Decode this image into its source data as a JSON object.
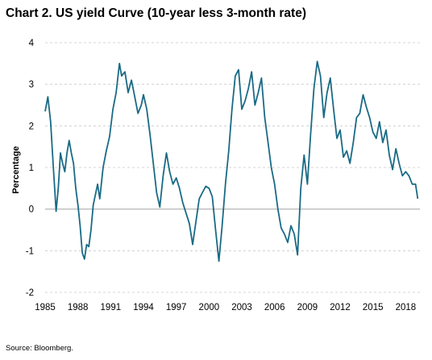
{
  "chart_data": {
    "type": "line",
    "title": "Chart 2. US yield Curve (10-year less 3-month rate)",
    "ylabel": "Percentage",
    "xlabel": "",
    "source": "Source: Bloomberg.",
    "ylim": [
      -2,
      4
    ],
    "xlim": [
      1985,
      2019.3
    ],
    "yticks": [
      "4",
      "3",
      "2",
      "1",
      "0",
      "-1",
      "-2"
    ],
    "xticks": [
      "1985",
      "1988",
      "1991",
      "1994",
      "1997",
      "2000",
      "2003",
      "2006",
      "2009",
      "2012",
      "2015",
      "2018"
    ],
    "grid": "horizontal dashed",
    "line_color": "#1a6a85",
    "series": [
      {
        "x": [
          1985.0,
          1985.25,
          1985.5,
          1985.75,
          1986.0,
          1986.2,
          1986.4,
          1986.6,
          1986.8,
          1987.0,
          1987.2,
          1987.4,
          1987.6,
          1987.8,
          1988.0,
          1988.2,
          1988.4,
          1988.6,
          1988.8,
          1989.0,
          1989.2,
          1989.4,
          1989.6,
          1989.8,
          1990.0,
          1990.3,
          1990.6,
          1990.9,
          1991.2,
          1991.5,
          1991.8,
          1992.0,
          1992.3,
          1992.6,
          1992.9,
          1993.2,
          1993.5,
          1993.8,
          1994.0,
          1994.3,
          1994.6,
          1994.9,
          1995.2,
          1995.5,
          1995.8,
          1996.1,
          1996.4,
          1996.7,
          1997.0,
          1997.3,
          1997.6,
          1997.9,
          1998.2,
          1998.5,
          1998.8,
          1999.1,
          1999.4,
          1999.7,
          2000.0,
          2000.3,
          2000.6,
          2000.9,
          2001.2,
          2001.5,
          2001.8,
          2002.1,
          2002.4,
          2002.7,
          2003.0,
          2003.3,
          2003.6,
          2003.9,
          2004.2,
          2004.5,
          2004.8,
          2005.1,
          2005.4,
          2005.7,
          2006.0,
          2006.3,
          2006.6,
          2006.9,
          2007.2,
          2007.5,
          2007.8,
          2008.1,
          2008.4,
          2008.7,
          2009.0,
          2009.3,
          2009.6,
          2009.9,
          2010.2,
          2010.5,
          2010.8,
          2011.1,
          2011.4,
          2011.7,
          2012.0,
          2012.3,
          2012.6,
          2012.9,
          2013.2,
          2013.5,
          2013.8,
          2014.1,
          2014.4,
          2014.7,
          2015.0,
          2015.3,
          2015.6,
          2015.9,
          2016.2,
          2016.5,
          2016.8,
          2017.1,
          2017.4,
          2017.7,
          2018.0,
          2018.3,
          2018.6,
          2018.9,
          2019.1
        ],
        "y": [
          2.35,
          2.7,
          2.1,
          1.0,
          -0.05,
          0.5,
          1.35,
          1.1,
          0.9,
          1.35,
          1.65,
          1.35,
          1.1,
          0.5,
          0.1,
          -0.4,
          -1.05,
          -1.2,
          -0.85,
          -0.9,
          -0.5,
          0.1,
          0.35,
          0.6,
          0.25,
          1.0,
          1.4,
          1.75,
          2.4,
          2.8,
          3.5,
          3.2,
          3.3,
          2.8,
          3.1,
          2.7,
          2.3,
          2.5,
          2.75,
          2.4,
          1.8,
          1.1,
          0.4,
          0.05,
          0.8,
          1.35,
          0.9,
          0.6,
          0.75,
          0.5,
          0.15,
          -0.1,
          -0.35,
          -0.85,
          -0.3,
          0.25,
          0.4,
          0.55,
          0.5,
          0.3,
          -0.5,
          -1.25,
          -0.4,
          0.6,
          1.4,
          2.4,
          3.2,
          3.35,
          2.4,
          2.6,
          2.9,
          3.3,
          2.5,
          2.8,
          3.15,
          2.2,
          1.6,
          1.0,
          0.6,
          0.0,
          -0.45,
          -0.6,
          -0.8,
          -0.4,
          -0.6,
          -1.1,
          0.5,
          1.3,
          0.6,
          1.8,
          2.9,
          3.55,
          3.2,
          2.2,
          2.8,
          3.15,
          2.4,
          1.7,
          1.9,
          1.25,
          1.4,
          1.1,
          1.6,
          2.2,
          2.3,
          2.75,
          2.45,
          2.2,
          1.85,
          1.7,
          2.1,
          1.6,
          1.9,
          1.3,
          0.95,
          1.45,
          1.1,
          0.8,
          0.9,
          0.8,
          0.6,
          0.6,
          0.25
        ]
      }
    ]
  }
}
